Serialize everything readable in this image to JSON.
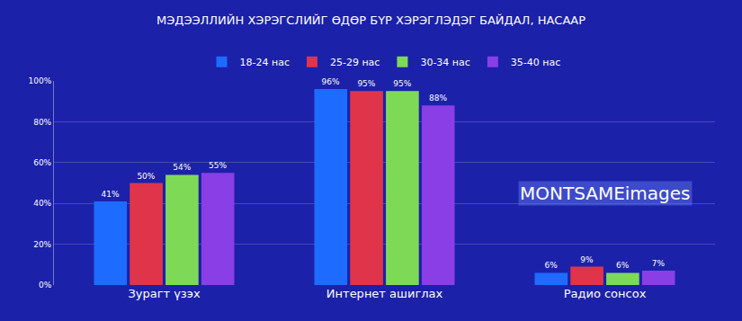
{
  "chart_data": {
    "type": "bar",
    "title": "МЭДЭЭЛЛИЙН ХЭРЭГСЛИЙГ ӨДӨР БҮР ХЭРЭГЛЭДЭГ БАЙДАЛ, НАСААР",
    "categories": [
      "Зурагт үзэх",
      "Интернет ашиглах",
      "Радио сонсох"
    ],
    "series": [
      {
        "name": "18-24 нас",
        "color": "#1e6bff",
        "values": [
          41,
          96,
          6
        ],
        "value_labels": [
          "41%",
          "96%",
          "6%"
        ]
      },
      {
        "name": "25-29 нас",
        "color": "#e0344a",
        "values": [
          50,
          95,
          9
        ],
        "value_labels": [
          "50%",
          "95%",
          "9%"
        ]
      },
      {
        "name": "30-34 нас",
        "color": "#7ed957",
        "values": [
          54,
          95,
          6
        ],
        "value_labels": [
          "54%",
          "95%",
          "6%"
        ]
      },
      {
        "name": "35-40 нас",
        "color": "#8a3ee6",
        "values": [
          55,
          88,
          7
        ],
        "value_labels": [
          "55%",
          "88%",
          "7%"
        ]
      }
    ],
    "ylim": [
      0,
      100
    ],
    "yticks": [
      {
        "value": 0,
        "label": "0%"
      },
      {
        "value": 20,
        "label": "20%"
      },
      {
        "value": 40,
        "label": "40%"
      },
      {
        "value": 60,
        "label": "60%"
      },
      {
        "value": 80,
        "label": "80%"
      },
      {
        "value": 100,
        "label": "100%"
      }
    ],
    "grid": true,
    "legend": "top",
    "data_labels": true,
    "annotations": [
      {
        "text": "MONTSAMEimages",
        "category": "Радио сонсох",
        "y": 45
      }
    ]
  }
}
